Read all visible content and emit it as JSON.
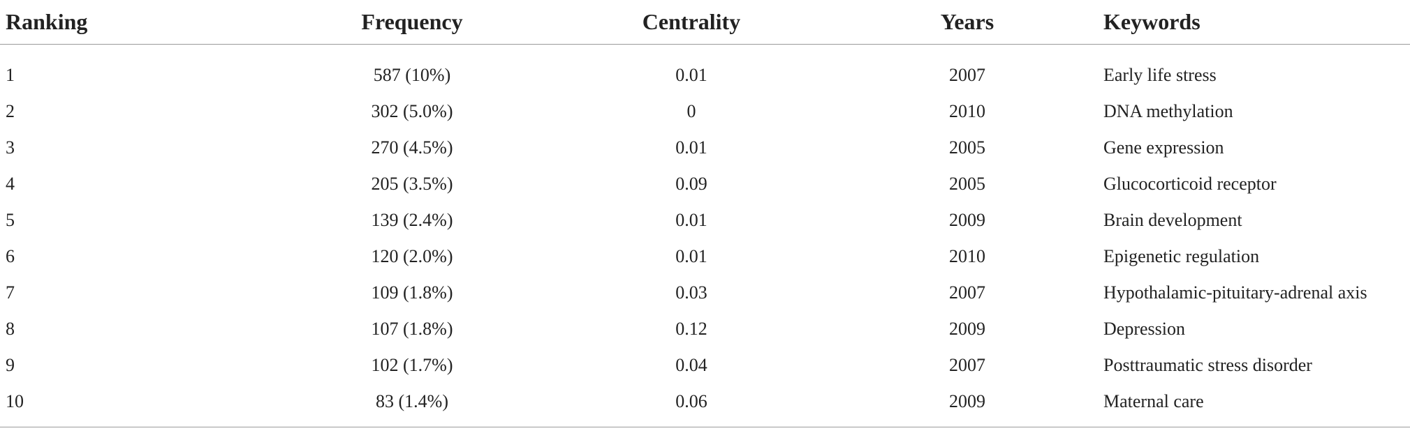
{
  "table": {
    "headers": {
      "ranking": "Ranking",
      "frequency": "Frequency",
      "centrality": "Centrality",
      "years": "Years",
      "keywords": "Keywords"
    },
    "rows": [
      {
        "ranking": "1",
        "frequency": "587 (10%)",
        "centrality": "0.01",
        "years": "2007",
        "keywords": "Early life stress"
      },
      {
        "ranking": "2",
        "frequency": "302 (5.0%)",
        "centrality": "0",
        "years": "2010",
        "keywords": "DNA methylation"
      },
      {
        "ranking": "3",
        "frequency": "270 (4.5%)",
        "centrality": "0.01",
        "years": "2005",
        "keywords": "Gene expression"
      },
      {
        "ranking": "4",
        "frequency": "205 (3.5%)",
        "centrality": "0.09",
        "years": "2005",
        "keywords": "Glucocorticoid receptor"
      },
      {
        "ranking": "5",
        "frequency": "139 (2.4%)",
        "centrality": "0.01",
        "years": "2009",
        "keywords": "Brain development"
      },
      {
        "ranking": "6",
        "frequency": "120 (2.0%)",
        "centrality": "0.01",
        "years": "2010",
        "keywords": "Epigenetic regulation"
      },
      {
        "ranking": "7",
        "frequency": "109 (1.8%)",
        "centrality": "0.03",
        "years": "2007",
        "keywords": "Hypothalamic-pituitary-adrenal axis"
      },
      {
        "ranking": "8",
        "frequency": "107 (1.8%)",
        "centrality": "0.12",
        "years": "2009",
        "keywords": "Depression"
      },
      {
        "ranking": "9",
        "frequency": "102 (1.7%)",
        "centrality": "0.04",
        "years": "2007",
        "keywords": "Posttraumatic stress disorder"
      },
      {
        "ranking": "10",
        "frequency": "83 (1.4%)",
        "centrality": "0.06",
        "years": "2009",
        "keywords": "Maternal care"
      }
    ]
  }
}
